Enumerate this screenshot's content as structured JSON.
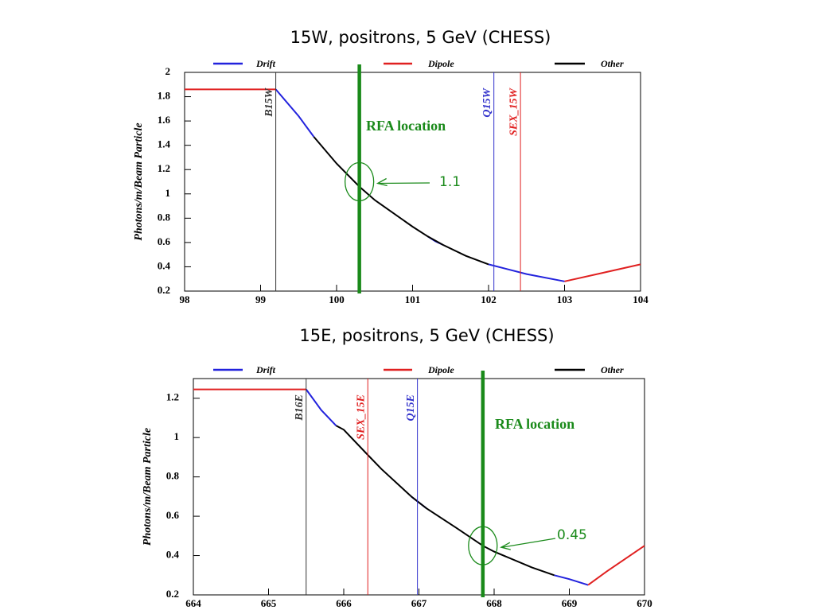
{
  "chart_data": [
    {
      "type": "line",
      "title": "15W, positrons, 5 GeV (CHESS)",
      "y_label": "Photons/m/Beam Particle",
      "xlim": [
        98,
        104
      ],
      "xticks": [
        98,
        99,
        100,
        101,
        102,
        103,
        104
      ],
      "ylim": [
        0.2,
        2
      ],
      "yticks": [
        0.2,
        0.4,
        0.6,
        0.8,
        1,
        1.2,
        1.4,
        1.6,
        1.8,
        2
      ],
      "legend": "top",
      "series": [
        {
          "name": "Drift",
          "color": "#2222dd",
          "x": [
            99.2,
            99.5,
            99.7,
            100.5,
            101.2,
            101.3,
            101.4,
            101.7,
            102,
            102.5,
            103
          ],
          "values": [
            1.86,
            1.64,
            1.47,
            null,
            0.65,
            0.61,
            0.58,
            null,
            0.42,
            0.34,
            0.28
          ]
        },
        {
          "name": "Dipole",
          "color": "#e02020",
          "x": [
            98,
            98.5,
            99,
            99.2,
            101,
            103,
            103.5,
            104
          ],
          "values": [
            1.86,
            1.86,
            1.86,
            1.86,
            null,
            0.28,
            0.35,
            0.42
          ]
        },
        {
          "name": "Other",
          "color": "#000000",
          "x": [
            99.7,
            100,
            100.3,
            100.5,
            101,
            101.2,
            101.4,
            101.7,
            102
          ],
          "values": [
            1.47,
            1.25,
            1.06,
            0.95,
            0.73,
            0.65,
            0.58,
            0.49,
            0.42
          ]
        }
      ],
      "markers": [
        {
          "label": "B15W",
          "x": 99.2,
          "color": "#333333"
        },
        {
          "label": "Q15W",
          "x": 102.07,
          "color": "#3333cc"
        },
        {
          "label": "SEX_15W",
          "x": 102.42,
          "color": "#e02020"
        }
      ],
      "rfa": {
        "label": "RFA location",
        "x": 100.3,
        "value": 1.1,
        "color": "#1a8a1a"
      }
    },
    {
      "type": "line",
      "title": "15E, positrons, 5 GeV (CHESS)",
      "y_label": "Photons/m/Beam Particle",
      "xlim": [
        664,
        670
      ],
      "xticks": [
        664,
        665,
        666,
        667,
        668,
        669,
        670
      ],
      "ylim": [
        0.2,
        1.3
      ],
      "yticks": [
        0.2,
        0.4,
        0.6,
        0.8,
        1,
        1.2
      ],
      "legend": "top",
      "series": [
        {
          "name": "Drift",
          "color": "#2222dd",
          "x": [
            665.5,
            665.7,
            665.9,
            666.4,
            666.9,
            667,
            667.1,
            668,
            668.8,
            669,
            669.25
          ],
          "values": [
            1.245,
            1.14,
            1.06,
            null,
            0.7,
            0.67,
            0.64,
            null,
            0.3,
            0.28,
            0.25
          ]
        },
        {
          "name": "Dipole",
          "color": "#e02020",
          "x": [
            664,
            664.5,
            665,
            665.5,
            667,
            669.25,
            669.5,
            670
          ],
          "values": [
            1.245,
            1.245,
            1.245,
            1.245,
            null,
            0.25,
            0.32,
            0.45
          ]
        },
        {
          "name": "Other",
          "color": "#000000",
          "x": [
            665.9,
            666,
            666.3,
            666.5,
            666.9,
            667.1,
            667.5,
            667.85,
            668,
            668.5,
            668.8
          ],
          "values": [
            1.06,
            1.04,
            0.92,
            0.84,
            0.7,
            0.64,
            0.54,
            0.45,
            0.42,
            0.34,
            0.3
          ]
        }
      ],
      "markers": [
        {
          "label": "B16E",
          "x": 665.5,
          "color": "#333333"
        },
        {
          "label": "SEX_15E",
          "x": 666.32,
          "color": "#e02020"
        },
        {
          "label": "Q15E",
          "x": 666.98,
          "color": "#3333cc"
        }
      ],
      "rfa": {
        "label": "RFA location",
        "x": 667.85,
        "value": 0.45,
        "color": "#1a8a1a"
      }
    }
  ]
}
